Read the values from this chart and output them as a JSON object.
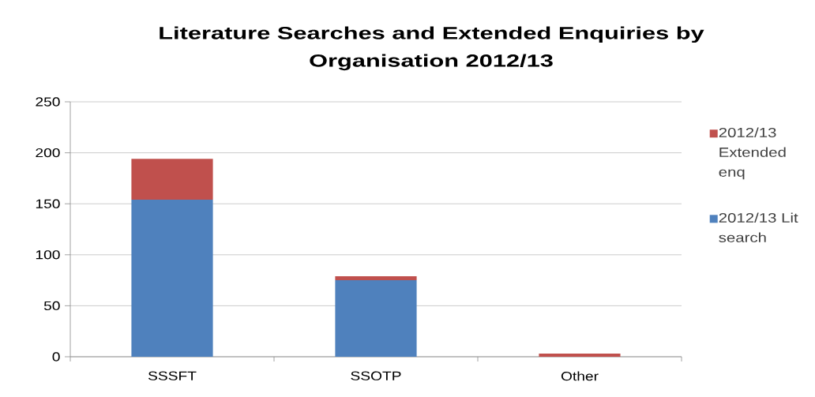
{
  "chart_data": {
    "type": "bar",
    "title": "Literature Searches and Extended Enquiries by Organisation 2012/13",
    "categories": [
      "SSSFT",
      "SSOTP",
      "Other"
    ],
    "stacked": true,
    "series": [
      {
        "name": "2012/13 Lit search",
        "color": "#4f81bd",
        "values": [
          154,
          75,
          0
        ]
      },
      {
        "name": "2012/13 Extended enq",
        "color": "#c0504d",
        "values": [
          40,
          4,
          3
        ]
      }
    ],
    "ylim": [
      0,
      250
    ],
    "yticks": [
      0,
      50,
      100,
      150,
      200,
      250
    ],
    "grid": "y",
    "legend": "right"
  }
}
